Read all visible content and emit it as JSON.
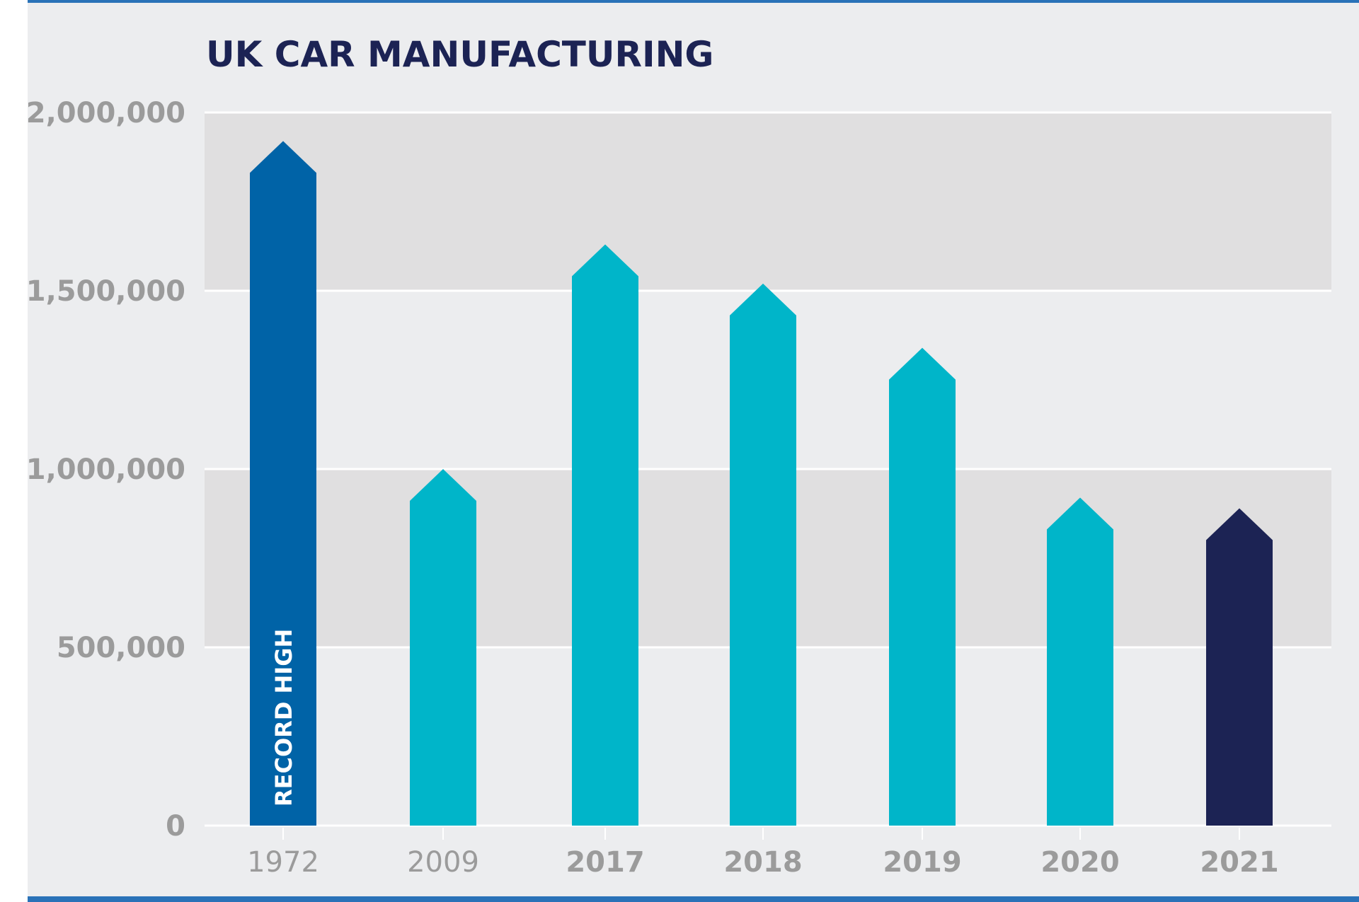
{
  "chart_data": {
    "type": "bar",
    "title": "UK CAR MANUFACTURING",
    "categories": [
      "1972",
      "2009",
      "2017",
      "2018",
      "2019",
      "2020",
      "2021"
    ],
    "values": [
      1920000,
      1000000,
      1630000,
      1520000,
      1340000,
      920000,
      890000
    ],
    "bar_colors": [
      "#0063a7",
      "#00b5c9",
      "#00b5c9",
      "#00b5c9",
      "#00b5c9",
      "#00b5c9",
      "#1c2354"
    ],
    "bold_categories": [
      false,
      false,
      true,
      true,
      true,
      true,
      true
    ],
    "annotations": [
      {
        "category": "1972",
        "text": "RECORD HIGH"
      }
    ],
    "yticks": [
      0,
      500000,
      1000000,
      1500000,
      2000000
    ],
    "ytick_labels": [
      "0",
      "500,000",
      "1,000,000",
      "1,500,000",
      "2,000,000"
    ],
    "ylim": [
      0,
      2000000
    ],
    "xlabel": "",
    "ylabel": "",
    "grid": true,
    "band_color": "#e0dfe0",
    "background": "#ecedef",
    "accent": "#2a72b8"
  }
}
